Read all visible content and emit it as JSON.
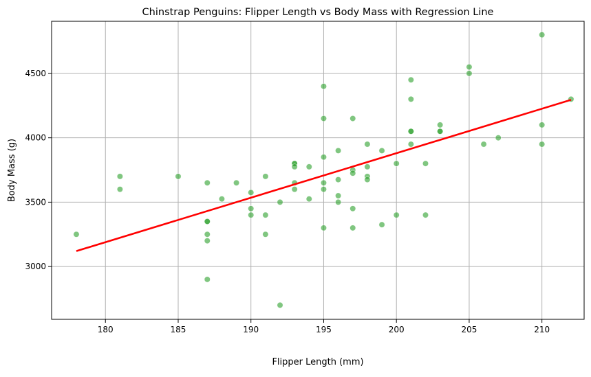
{
  "chart_data": {
    "type": "scatter",
    "title": "Chinstrap Penguins: Flipper Length vs Body Mass with Regression Line",
    "xlabel": "Flipper Length (mm)",
    "ylabel": "Body Mass (g)",
    "xlim": [
      176.3,
      212.9
    ],
    "ylim": [
      2590,
      4905
    ],
    "x_ticks": [
      180,
      185,
      190,
      195,
      200,
      205,
      210
    ],
    "y_ticks": [
      3000,
      3500,
      4000,
      4500
    ],
    "grid": true,
    "colors": {
      "points": "#2ca02c",
      "regression": "#ff0000",
      "grid": "#b0b0b0"
    },
    "points": [
      {
        "x": 178,
        "y": 3250
      },
      {
        "x": 181,
        "y": 3700
      },
      {
        "x": 181,
        "y": 3600
      },
      {
        "x": 185,
        "y": 3700
      },
      {
        "x": 187,
        "y": 3650
      },
      {
        "x": 187,
        "y": 3350
      },
      {
        "x": 187,
        "y": 3350
      },
      {
        "x": 187,
        "y": 3250
      },
      {
        "x": 187,
        "y": 3200
      },
      {
        "x": 187,
        "y": 2900
      },
      {
        "x": 188,
        "y": 3525
      },
      {
        "x": 189,
        "y": 3650
      },
      {
        "x": 190,
        "y": 3575
      },
      {
        "x": 190,
        "y": 3450
      },
      {
        "x": 190,
        "y": 3400
      },
      {
        "x": 191,
        "y": 3700
      },
      {
        "x": 191,
        "y": 3400
      },
      {
        "x": 191,
        "y": 3250
      },
      {
        "x": 192,
        "y": 3500
      },
      {
        "x": 192,
        "y": 2700
      },
      {
        "x": 193,
        "y": 3800
      },
      {
        "x": 193,
        "y": 3800
      },
      {
        "x": 193,
        "y": 3775
      },
      {
        "x": 193,
        "y": 3650
      },
      {
        "x": 193,
        "y": 3600
      },
      {
        "x": 194,
        "y": 3775
      },
      {
        "x": 194,
        "y": 3525
      },
      {
        "x": 195,
        "y": 4400
      },
      {
        "x": 195,
        "y": 4150
      },
      {
        "x": 195,
        "y": 3850
      },
      {
        "x": 195,
        "y": 3650
      },
      {
        "x": 195,
        "y": 3600
      },
      {
        "x": 195,
        "y": 3300
      },
      {
        "x": 196,
        "y": 3900
      },
      {
        "x": 196,
        "y": 3675
      },
      {
        "x": 196,
        "y": 3550
      },
      {
        "x": 196,
        "y": 3500
      },
      {
        "x": 197,
        "y": 4150
      },
      {
        "x": 197,
        "y": 3750
      },
      {
        "x": 197,
        "y": 3725
      },
      {
        "x": 197,
        "y": 3450
      },
      {
        "x": 197,
        "y": 3300
      },
      {
        "x": 198,
        "y": 3950
      },
      {
        "x": 198,
        "y": 3775
      },
      {
        "x": 198,
        "y": 3700
      },
      {
        "x": 198,
        "y": 3675
      },
      {
        "x": 199,
        "y": 3900
      },
      {
        "x": 199,
        "y": 3325
      },
      {
        "x": 200,
        "y": 3800
      },
      {
        "x": 200,
        "y": 3400
      },
      {
        "x": 201,
        "y": 4450
      },
      {
        "x": 201,
        "y": 4300
      },
      {
        "x": 201,
        "y": 4050
      },
      {
        "x": 201,
        "y": 4050
      },
      {
        "x": 201,
        "y": 3950
      },
      {
        "x": 202,
        "y": 3800
      },
      {
        "x": 202,
        "y": 3400
      },
      {
        "x": 203,
        "y": 4100
      },
      {
        "x": 203,
        "y": 4050
      },
      {
        "x": 203,
        "y": 4050
      },
      {
        "x": 205,
        "y": 4550
      },
      {
        "x": 205,
        "y": 4500
      },
      {
        "x": 206,
        "y": 3950
      },
      {
        "x": 207,
        "y": 4000
      },
      {
        "x": 210,
        "y": 4800
      },
      {
        "x": 210,
        "y": 4100
      },
      {
        "x": 210,
        "y": 3950
      },
      {
        "x": 212,
        "y": 4300
      }
    ],
    "regression": {
      "x": [
        178,
        212
      ],
      "y": [
        3120,
        4295
      ]
    }
  }
}
